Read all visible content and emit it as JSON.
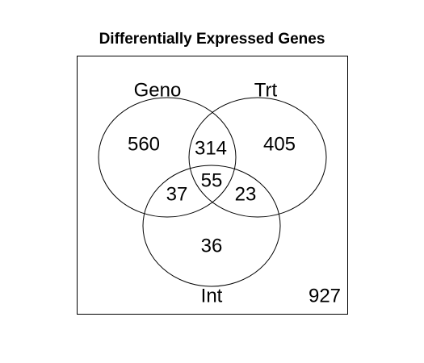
{
  "title": "Differentially Expressed Genes",
  "sets": {
    "geno": "Geno",
    "trt": "Trt",
    "int": "Int"
  },
  "counts": {
    "geno_only": "560",
    "trt_only": "405",
    "int_only": "36",
    "geno_trt": "314",
    "geno_int": "37",
    "trt_int": "23",
    "all_three": "55",
    "none": "927"
  },
  "colors": {
    "stroke": "#000000",
    "background": "#ffffff"
  }
}
